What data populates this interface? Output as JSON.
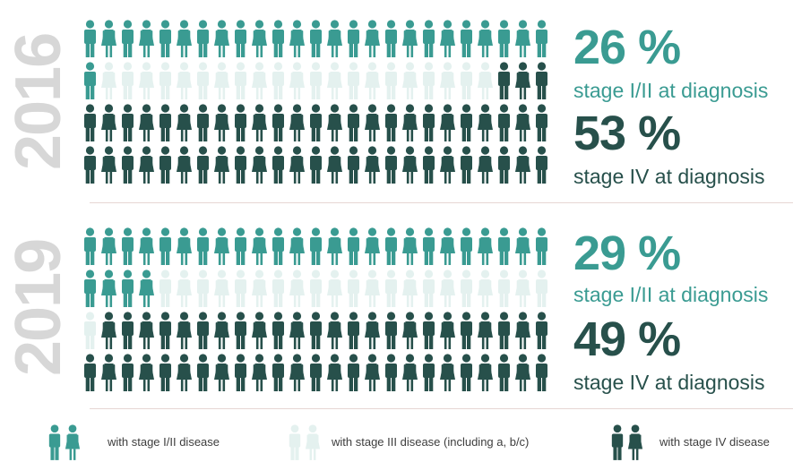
{
  "colors": {
    "stage_1_2": "#3a9b92",
    "stage_3": "#e4f1ef",
    "stage_4": "#27504b"
  },
  "icons": {
    "person_male": "person-male-icon",
    "person_female": "person-female-icon"
  },
  "chart_data": [
    {
      "type": "pictogram",
      "year": "2016",
      "grid": {
        "rows": 4,
        "cols": 25
      },
      "counts": {
        "stage_1_2": 26,
        "stage_3": 21,
        "stage_4": 53
      },
      "stats": [
        {
          "value": "26 %",
          "label": "stage I/II at diagnosis"
        },
        {
          "value": "53 %",
          "label": "stage IV at diagnosis"
        }
      ]
    },
    {
      "type": "pictogram",
      "year": "2019",
      "grid": {
        "rows": 4,
        "cols": 25
      },
      "counts": {
        "stage_1_2": 29,
        "stage_3": 22,
        "stage_4": 49
      },
      "stats": [
        {
          "value": "29 %",
          "label": "stage I/II at diagnosis"
        },
        {
          "value": "49 %",
          "label": "stage IV at diagnosis"
        }
      ]
    }
  ],
  "legend": [
    {
      "key": "stage_1_2",
      "label": "with stage I/II disease"
    },
    {
      "key": "stage_3",
      "label": "with stage III disease (including a, b/c)"
    },
    {
      "key": "stage_4",
      "label": "with stage IV disease"
    }
  ]
}
